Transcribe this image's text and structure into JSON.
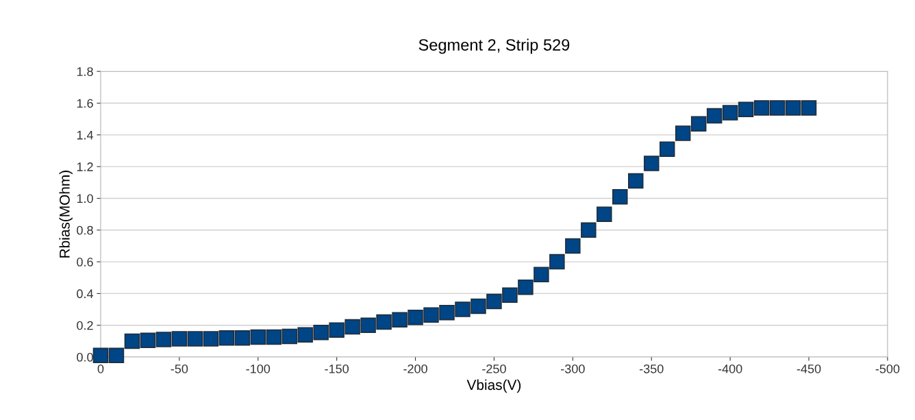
{
  "chart_data": {
    "type": "scatter",
    "title": "Segment 2, Strip 529",
    "xlabel": "Vbias(V)",
    "ylabel": "Rbias(MOhm)",
    "x": [
      0,
      -10,
      -20,
      -30,
      -40,
      -50,
      -60,
      -70,
      -80,
      -90,
      -100,
      -110,
      -120,
      -130,
      -140,
      -150,
      -160,
      -170,
      -180,
      -190,
      -200,
      -210,
      -220,
      -230,
      -240,
      -250,
      -260,
      -270,
      -280,
      -290,
      -300,
      -310,
      -320,
      -330,
      -340,
      -350,
      -360,
      -370,
      -380,
      -390,
      -400,
      -410,
      -420,
      -430,
      -440,
      -450
    ],
    "series": [
      {
        "color": "#004586",
        "values": [
          0.01,
          0.01,
          0.1,
          0.105,
          0.11,
          0.115,
          0.115,
          0.115,
          0.12,
          0.12,
          0.125,
          0.125,
          0.13,
          0.14,
          0.155,
          0.17,
          0.19,
          0.2,
          0.22,
          0.235,
          0.25,
          0.265,
          0.28,
          0.3,
          0.32,
          0.35,
          0.39,
          0.44,
          0.52,
          0.6,
          0.7,
          0.8,
          0.9,
          1.01,
          1.11,
          1.22,
          1.31,
          1.41,
          1.47,
          1.52,
          1.54,
          1.56,
          1.57,
          1.57,
          1.57,
          1.57
        ]
      }
    ],
    "xlim": [
      0,
      -500
    ],
    "xticks": [
      0,
      -50,
      -100,
      -150,
      -200,
      -250,
      -300,
      -350,
      -400,
      -450,
      -500
    ],
    "ylim": [
      0,
      1.8
    ],
    "yticks": [
      {
        "value": 0,
        "label": "0.0"
      },
      0.2,
      0.4,
      0.6,
      0.8,
      {
        "value": 1,
        "label": "1.0"
      },
      1.2,
      1.4,
      1.6,
      1.8
    ],
    "grid": "y",
    "marker": "square",
    "legend": false
  }
}
